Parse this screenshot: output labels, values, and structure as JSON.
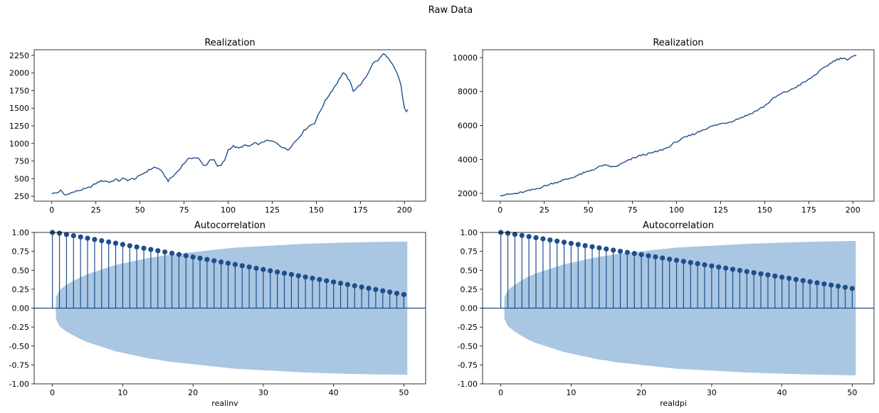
{
  "figure": {
    "suptitle": "Raw Data"
  },
  "colors": {
    "line": "#1f4e8c",
    "stem": "#1f4e8c",
    "band": "#a9c6e2",
    "axis": "#000000"
  },
  "chart_data": [
    {
      "id": "realinv-realization",
      "type": "line",
      "title": "Realization",
      "xlabel": "",
      "xlim": [
        -10,
        212
      ],
      "ylim": [
        180,
        2330
      ],
      "xticks": [
        0,
        25,
        50,
        75,
        100,
        125,
        150,
        175,
        200
      ],
      "yticks": [
        250,
        500,
        750,
        1000,
        1250,
        1500,
        1750,
        2000,
        2250
      ],
      "series": [
        {
          "keypoints": [
            [
              0,
              285
            ],
            [
              3,
              300
            ],
            [
              5,
              330
            ],
            [
              7,
              275
            ],
            [
              8,
              265
            ],
            [
              10,
              295
            ],
            [
              12,
              305
            ],
            [
              15,
              330
            ],
            [
              20,
              360
            ],
            [
              23,
              400
            ],
            [
              27,
              460
            ],
            [
              30,
              470
            ],
            [
              33,
              450
            ],
            [
              36,
              490
            ],
            [
              38,
              470
            ],
            [
              40,
              500
            ],
            [
              43,
              480
            ],
            [
              47,
              500
            ],
            [
              50,
              540
            ],
            [
              52,
              575
            ],
            [
              55,
              620
            ],
            [
              58,
              660
            ],
            [
              61,
              640
            ],
            [
              64,
              540
            ],
            [
              66,
              470
            ],
            [
              69,
              540
            ],
            [
              72,
              620
            ],
            [
              74,
              690
            ],
            [
              77,
              770
            ],
            [
              80,
              800
            ],
            [
              83,
              790
            ],
            [
              86,
              690
            ],
            [
              88,
              700
            ],
            [
              90,
              780
            ],
            [
              92,
              760
            ],
            [
              94,
              670
            ],
            [
              96,
              690
            ],
            [
              98,
              760
            ],
            [
              100,
              910
            ],
            [
              103,
              960
            ],
            [
              106,
              930
            ],
            [
              109,
              970
            ],
            [
              112,
              960
            ],
            [
              115,
              1000
            ],
            [
              118,
              990
            ],
            [
              121,
              1040
            ],
            [
              125,
              1030
            ],
            [
              128,
              1000
            ],
            [
              131,
              940
            ],
            [
              134,
              910
            ],
            [
              137,
              1000
            ],
            [
              140,
              1080
            ],
            [
              143,
              1180
            ],
            [
              146,
              1250
            ],
            [
              149,
              1290
            ],
            [
              152,
              1450
            ],
            [
              155,
              1600
            ],
            [
              158,
              1720
            ],
            [
              161,
              1830
            ],
            [
              163,
              1910
            ],
            [
              165,
              2000
            ],
            [
              167,
              1960
            ],
            [
              169,
              1880
            ],
            [
              171,
              1750
            ],
            [
              173,
              1790
            ],
            [
              176,
              1860
            ],
            [
              179,
              1980
            ],
            [
              182,
              2140
            ],
            [
              185,
              2180
            ],
            [
              188,
              2270
            ],
            [
              190,
              2240
            ],
            [
              192,
              2160
            ],
            [
              194,
              2080
            ],
            [
              196,
              1980
            ],
            [
              198,
              1830
            ],
            [
              199,
              1650
            ],
            [
              200,
              1500
            ],
            [
              201,
              1450
            ],
            [
              202,
              1480
            ]
          ]
        }
      ]
    },
    {
      "id": "realdpi-realization",
      "type": "line",
      "title": "Realization",
      "xlabel": "",
      "xlim": [
        -10,
        212
      ],
      "ylim": [
        1540,
        10460
      ],
      "xticks": [
        0,
        25,
        50,
        75,
        100,
        125,
        150,
        175,
        200
      ],
      "yticks": [
        2000,
        4000,
        6000,
        8000,
        10000
      ],
      "series": [
        {
          "keypoints": [
            [
              0,
              1885
            ],
            [
              10,
              2000
            ],
            [
              20,
              2250
            ],
            [
              30,
              2600
            ],
            [
              40,
              2900
            ],
            [
              50,
              3300
            ],
            [
              55,
              3500
            ],
            [
              58,
              3650
            ],
            [
              62,
              3600
            ],
            [
              65,
              3550
            ],
            [
              70,
              3800
            ],
            [
              75,
              4050
            ],
            [
              80,
              4250
            ],
            [
              85,
              4350
            ],
            [
              90,
              4500
            ],
            [
              95,
              4700
            ],
            [
              100,
              5050
            ],
            [
              105,
              5300
            ],
            [
              110,
              5500
            ],
            [
              115,
              5750
            ],
            [
              120,
              5950
            ],
            [
              125,
              6100
            ],
            [
              130,
              6200
            ],
            [
              135,
              6400
            ],
            [
              140,
              6600
            ],
            [
              145,
              6850
            ],
            [
              150,
              7150
            ],
            [
              155,
              7600
            ],
            [
              160,
              7900
            ],
            [
              165,
              8100
            ],
            [
              170,
              8400
            ],
            [
              175,
              8700
            ],
            [
              180,
              9100
            ],
            [
              185,
              9500
            ],
            [
              190,
              9850
            ],
            [
              193,
              9950
            ],
            [
              195,
              10000
            ],
            [
              197,
              9850
            ],
            [
              200,
              10050
            ],
            [
              202,
              10100
            ]
          ]
        }
      ]
    },
    {
      "id": "realinv-acf",
      "type": "stem",
      "title": "Autocorrelation",
      "xlabel": "realinv",
      "xlim": [
        -2.6,
        53.1
      ],
      "ylim": [
        -1,
        1
      ],
      "xticks": [
        0,
        10,
        20,
        30,
        40,
        50
      ],
      "yticks": [
        -1.0,
        -0.75,
        -0.5,
        -0.25,
        0.0,
        0.25,
        0.5,
        0.75,
        1.0
      ],
      "lags": [
        0,
        1,
        2,
        3,
        4,
        5,
        6,
        7,
        8,
        9,
        10,
        11,
        12,
        13,
        14,
        15,
        16,
        17,
        18,
        19,
        20,
        21,
        22,
        23,
        24,
        25,
        26,
        27,
        28,
        29,
        30,
        31,
        32,
        33,
        34,
        35,
        36,
        37,
        38,
        39,
        40,
        41,
        42,
        43,
        44,
        45,
        46,
        47,
        48,
        49,
        50
      ],
      "acf_first": 1.0,
      "acf_lag1": 0.99,
      "acf_last": 0.18,
      "band_upper": [
        0.14,
        0.24,
        0.31,
        0.36,
        0.41,
        0.45,
        0.48,
        0.51,
        0.54,
        0.57,
        0.59,
        0.61,
        0.63,
        0.65,
        0.67,
        0.68,
        0.7,
        0.71,
        0.72,
        0.73,
        0.74,
        0.75,
        0.76,
        0.77,
        0.78,
        0.79,
        0.8,
        0.805,
        0.81,
        0.815,
        0.82,
        0.825,
        0.83,
        0.835,
        0.84,
        0.845,
        0.85,
        0.853,
        0.856,
        0.859,
        0.862,
        0.865,
        0.867,
        0.869,
        0.871,
        0.873,
        0.875,
        0.876,
        0.877,
        0.878,
        0.879
      ]
    },
    {
      "id": "realdpi-acf",
      "type": "stem",
      "title": "Autocorrelation",
      "xlabel": "realdpi",
      "xlim": [
        -2.6,
        53.1
      ],
      "ylim": [
        -1,
        1
      ],
      "xticks": [
        0,
        10,
        20,
        30,
        40,
        50
      ],
      "yticks": [
        -1.0,
        -0.75,
        -0.5,
        -0.25,
        0.0,
        0.25,
        0.5,
        0.75,
        1.0
      ],
      "lags": [
        0,
        1,
        2,
        3,
        4,
        5,
        6,
        7,
        8,
        9,
        10,
        11,
        12,
        13,
        14,
        15,
        16,
        17,
        18,
        19,
        20,
        21,
        22,
        23,
        24,
        25,
        26,
        27,
        28,
        29,
        30,
        31,
        32,
        33,
        34,
        35,
        36,
        37,
        38,
        39,
        40,
        41,
        42,
        43,
        44,
        45,
        46,
        47,
        48,
        49,
        50
      ],
      "acf_first": 1.0,
      "acf_lag1": 0.99,
      "acf_last": 0.26,
      "band_upper": [
        0.14,
        0.24,
        0.31,
        0.37,
        0.42,
        0.46,
        0.49,
        0.52,
        0.55,
        0.58,
        0.6,
        0.62,
        0.64,
        0.66,
        0.68,
        0.69,
        0.71,
        0.72,
        0.73,
        0.74,
        0.75,
        0.76,
        0.77,
        0.78,
        0.79,
        0.8,
        0.805,
        0.81,
        0.815,
        0.82,
        0.825,
        0.83,
        0.835,
        0.84,
        0.845,
        0.85,
        0.853,
        0.856,
        0.859,
        0.862,
        0.865,
        0.868,
        0.871,
        0.874,
        0.876,
        0.878,
        0.88,
        0.882,
        0.884,
        0.886,
        0.888
      ]
    }
  ]
}
